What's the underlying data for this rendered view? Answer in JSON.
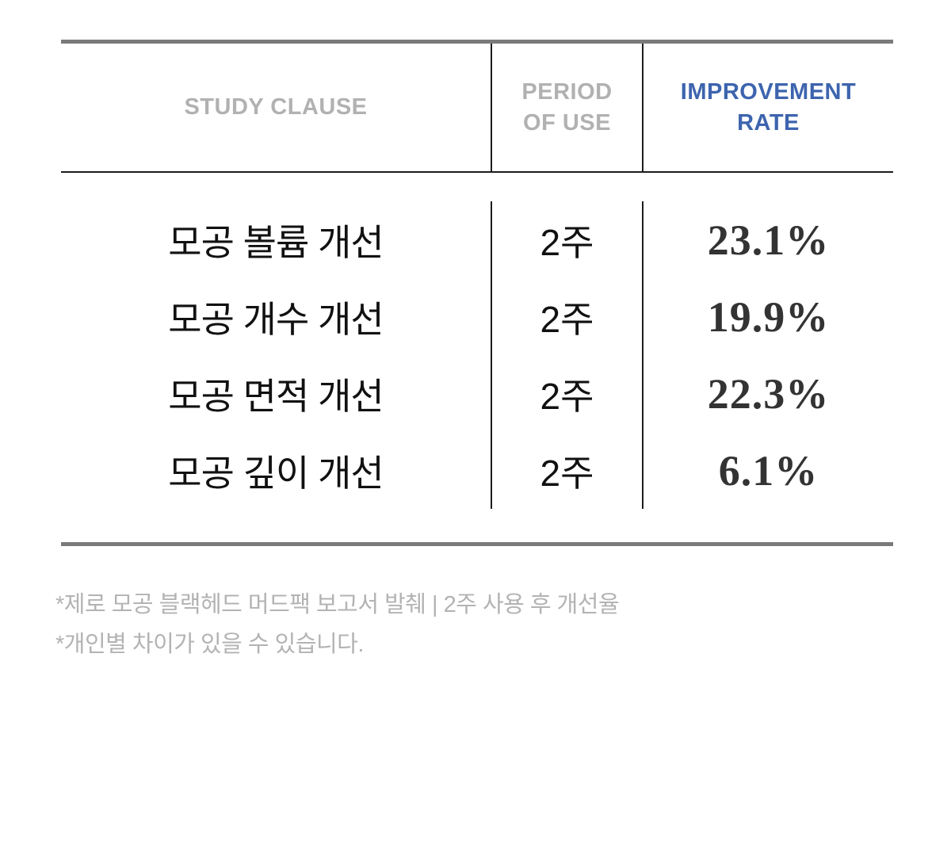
{
  "table": {
    "headers": {
      "study_clause": {
        "lines": [
          "STUDY CLAUSE"
        ]
      },
      "period_of_use": {
        "lines": [
          "PERIOD",
          "OF USE"
        ]
      },
      "improvement_rate": {
        "lines": [
          "IMPROVEMENT",
          "RATE"
        ]
      }
    },
    "rows": [
      {
        "clause": "모공 볼륨 개선",
        "period": "2주",
        "rate": "23.1%"
      },
      {
        "clause": "모공 개수 개선",
        "period": "2주",
        "rate": "19.9%"
      },
      {
        "clause": "모공 면적 개선",
        "period": "2주",
        "rate": "22.3%"
      },
      {
        "clause": "모공 깊이 개선",
        "period": "2주",
        "rate": "6.1%"
      }
    ]
  },
  "footnotes": [
    "*제로 모공 블랙헤드 머드팩 보고서 발췌  |  2주 사용 후 개선율",
    "*개인별 차이가 있을 수 있습니다."
  ],
  "colors": {
    "accent_blue": "#3d64ae",
    "header_gray": "#b1b1b1",
    "border_gray": "#7a7a7a",
    "rule_black": "#1c1c1c",
    "rate_text": "#333333",
    "footnote_gray": "#b3b3b3"
  }
}
